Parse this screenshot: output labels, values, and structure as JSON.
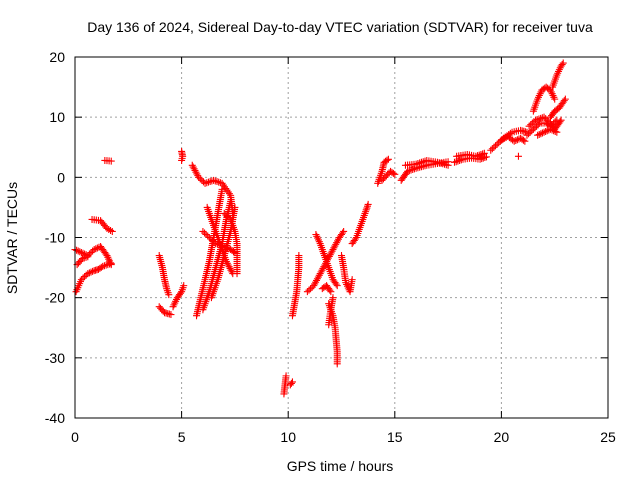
{
  "chart_data": {
    "type": "scatter",
    "title": "Day 136 of 2024, Sidereal Day-to-day VTEC variation (SDTVAR) for receiver tuva",
    "xlabel": "GPS time / hours",
    "ylabel": "SDTVAR / TECUs",
    "xlim": [
      0,
      25
    ],
    "ylim": [
      -40,
      20
    ],
    "xticks": [
      0,
      5,
      10,
      15,
      20,
      25
    ],
    "yticks": [
      -40,
      -30,
      -20,
      -10,
      0,
      10,
      20
    ],
    "xtick_labels": [
      "0",
      "5",
      "10",
      "15",
      "20",
      "25"
    ],
    "ytick_labels": [
      "-40",
      "-30",
      "-20",
      "-10",
      "0",
      "10",
      "20"
    ],
    "grid": true,
    "marker": "+",
    "color": "#ff0000",
    "segments": [
      {
        "name": "s1",
        "points": [
          [
            0.05,
            -19
          ],
          [
            0.3,
            -17
          ],
          [
            0.6,
            -16
          ],
          [
            0.9,
            -15.5
          ],
          [
            1.1,
            -15.3
          ],
          [
            1.3,
            -14.8
          ],
          [
            1.7,
            -14.3
          ]
        ]
      },
      {
        "name": "s2",
        "points": [
          [
            0.0,
            -12
          ],
          [
            0.3,
            -12.5
          ],
          [
            0.6,
            -13
          ],
          [
            0.9,
            -12
          ],
          [
            1.2,
            -11.5
          ],
          [
            1.5,
            -13
          ],
          [
            1.7,
            -14.5
          ]
        ]
      },
      {
        "name": "s3",
        "points": [
          [
            0.1,
            -14.5
          ],
          [
            0.35,
            -13.5
          ],
          [
            0.6,
            -13.2
          ]
        ]
      },
      {
        "name": "s4",
        "points": [
          [
            0.8,
            -7
          ],
          [
            1.2,
            -7.2
          ],
          [
            1.5,
            -8.5
          ],
          [
            1.75,
            -9
          ]
        ]
      },
      {
        "name": "s5",
        "points": [
          [
            1.4,
            2.8
          ],
          [
            1.7,
            2.7
          ]
        ]
      },
      {
        "name": "s6",
        "points": [
          [
            3.95,
            -13
          ],
          [
            4.1,
            -15
          ],
          [
            4.2,
            -17
          ],
          [
            4.3,
            -18.5
          ],
          [
            4.4,
            -19.5
          ]
        ]
      },
      {
        "name": "s7",
        "points": [
          [
            3.95,
            -21.5
          ],
          [
            4.2,
            -22.5
          ],
          [
            4.5,
            -22.8
          ]
        ]
      },
      {
        "name": "s8",
        "points": [
          [
            4.6,
            -21.5
          ],
          [
            4.8,
            -20
          ],
          [
            5.0,
            -19
          ],
          [
            5.1,
            -18
          ]
        ]
      },
      {
        "name": "s9",
        "points": [
          [
            5.0,
            4.3
          ],
          [
            5.05,
            3.5
          ],
          [
            5.0,
            2.8
          ]
        ]
      },
      {
        "name": "s10",
        "points": [
          [
            5.7,
            -23
          ],
          [
            5.9,
            -20
          ],
          [
            6.1,
            -17
          ],
          [
            6.3,
            -14
          ],
          [
            6.5,
            -10
          ],
          [
            6.7,
            -6
          ],
          [
            6.9,
            -2
          ]
        ]
      },
      {
        "name": "s11",
        "points": [
          [
            6.0,
            -22
          ],
          [
            6.3,
            -19
          ],
          [
            6.6,
            -15
          ],
          [
            6.9,
            -11
          ],
          [
            7.1,
            -7
          ],
          [
            7.3,
            -4
          ]
        ]
      },
      {
        "name": "s12",
        "points": [
          [
            6.4,
            -20
          ],
          [
            6.7,
            -17
          ],
          [
            7.0,
            -13
          ],
          [
            7.3,
            -9
          ],
          [
            7.5,
            -5
          ]
        ]
      },
      {
        "name": "s13",
        "points": [
          [
            5.5,
            2
          ],
          [
            5.8,
            0
          ],
          [
            6.1,
            -1
          ],
          [
            6.5,
            -0.5
          ],
          [
            6.9,
            -1
          ],
          [
            7.3,
            -3
          ],
          [
            7.4,
            -6
          ]
        ]
      },
      {
        "name": "s14",
        "points": [
          [
            6.0,
            -9
          ],
          [
            6.3,
            -10
          ],
          [
            6.6,
            -11
          ],
          [
            7.0,
            -11.5
          ],
          [
            7.3,
            -12
          ],
          [
            7.5,
            -12.5
          ]
        ]
      },
      {
        "name": "s15",
        "points": [
          [
            6.2,
            -5
          ],
          [
            6.5,
            -8
          ],
          [
            6.8,
            -11
          ],
          [
            7.1,
            -14
          ],
          [
            7.4,
            -16
          ]
        ]
      },
      {
        "name": "s16",
        "points": [
          [
            7.0,
            -6
          ],
          [
            7.3,
            -7
          ],
          [
            7.5,
            -9
          ],
          [
            7.6,
            -11
          ],
          [
            7.6,
            -13
          ],
          [
            7.6,
            -15
          ],
          [
            7.6,
            -16
          ]
        ]
      },
      {
        "name": "s17",
        "points": [
          [
            9.8,
            -36
          ],
          [
            9.9,
            -33
          ]
        ]
      },
      {
        "name": "s18",
        "points": [
          [
            10.1,
            -34.5
          ],
          [
            10.2,
            -34
          ]
        ]
      },
      {
        "name": "s19",
        "points": [
          [
            10.2,
            -23
          ],
          [
            10.3,
            -21
          ],
          [
            10.4,
            -19
          ],
          [
            10.45,
            -17
          ],
          [
            10.5,
            -15
          ],
          [
            10.5,
            -13
          ]
        ]
      },
      {
        "name": "s20",
        "points": [
          [
            10.9,
            -19
          ],
          [
            11.2,
            -18
          ],
          [
            11.5,
            -16
          ],
          [
            11.8,
            -14
          ],
          [
            12.1,
            -12
          ],
          [
            12.4,
            -10
          ],
          [
            12.6,
            -9
          ]
        ]
      },
      {
        "name": "s21",
        "points": [
          [
            11.3,
            -9.5
          ],
          [
            11.5,
            -11
          ],
          [
            11.7,
            -13
          ],
          [
            11.9,
            -15
          ],
          [
            12.1,
            -17
          ],
          [
            12.3,
            -18
          ]
        ]
      },
      {
        "name": "s22",
        "points": [
          [
            11.6,
            -18.5
          ],
          [
            11.8,
            -18
          ],
          [
            12.0,
            -19
          ]
        ]
      },
      {
        "name": "s23",
        "points": [
          [
            11.9,
            -21
          ],
          [
            12.1,
            -23
          ],
          [
            12.2,
            -25
          ],
          [
            12.25,
            -27
          ],
          [
            12.3,
            -29
          ],
          [
            12.3,
            -31
          ]
        ]
      },
      {
        "name": "s24",
        "points": [
          [
            12.1,
            -20
          ],
          [
            12.0,
            -22
          ],
          [
            11.9,
            -24.5
          ]
        ]
      },
      {
        "name": "s25",
        "points": [
          [
            12.5,
            -13
          ],
          [
            12.6,
            -15
          ],
          [
            12.7,
            -17.5
          ],
          [
            12.9,
            -19
          ],
          [
            13.0,
            -17
          ]
        ]
      },
      {
        "name": "s26",
        "points": [
          [
            13.0,
            -11
          ],
          [
            13.2,
            -10
          ],
          [
            13.4,
            -8
          ],
          [
            13.6,
            -6
          ],
          [
            13.75,
            -4.5
          ]
        ]
      },
      {
        "name": "s27",
        "points": [
          [
            14.2,
            -1
          ],
          [
            14.3,
            0
          ],
          [
            14.4,
            1
          ],
          [
            14.5,
            2.5
          ],
          [
            14.7,
            3
          ]
        ]
      },
      {
        "name": "s28",
        "points": [
          [
            14.4,
            -0.5
          ],
          [
            14.8,
            1
          ],
          [
            15.0,
            0.5
          ]
        ]
      },
      {
        "name": "s29",
        "points": [
          [
            15.3,
            -0.5
          ],
          [
            15.6,
            1
          ],
          [
            16.0,
            1.5
          ],
          [
            16.5,
            2
          ],
          [
            17.0,
            2.3
          ],
          [
            17.5,
            2.6
          ]
        ]
      },
      {
        "name": "s30",
        "points": [
          [
            15.5,
            2
          ],
          [
            16.0,
            2.2
          ],
          [
            16.5,
            2.8
          ],
          [
            17.0,
            2.5
          ],
          [
            17.5,
            2
          ]
        ]
      },
      {
        "name": "s31",
        "points": [
          [
            17.8,
            2.5
          ],
          [
            18.2,
            3
          ],
          [
            18.6,
            3.2
          ],
          [
            19.0,
            3
          ],
          [
            19.3,
            3.4
          ]
        ]
      },
      {
        "name": "s32",
        "points": [
          [
            17.9,
            3.5
          ],
          [
            18.4,
            3.8
          ],
          [
            18.8,
            3.5
          ],
          [
            19.2,
            4
          ]
        ]
      },
      {
        "name": "s33",
        "points": [
          [
            19.5,
            4.5
          ],
          [
            19.8,
            5.5
          ],
          [
            20.1,
            6.5
          ],
          [
            20.5,
            7.5
          ],
          [
            20.9,
            7.8
          ],
          [
            21.2,
            7.5
          ]
        ]
      },
      {
        "name": "s34",
        "points": [
          [
            20.0,
            6.2
          ],
          [
            20.3,
            6.8
          ],
          [
            20.6,
            6
          ],
          [
            20.9,
            6.5
          ],
          [
            21.1,
            6
          ]
        ]
      },
      {
        "name": "s35",
        "points": [
          [
            20.8,
            3.5
          ]
        ]
      },
      {
        "name": "s36",
        "points": [
          [
            21.2,
            7
          ],
          [
            21.5,
            8
          ],
          [
            21.8,
            9
          ],
          [
            22.1,
            9
          ],
          [
            22.3,
            8.5
          ],
          [
            22.6,
            9.5
          ]
        ]
      },
      {
        "name": "s37",
        "points": [
          [
            21.3,
            8.5
          ],
          [
            21.6,
            9.5
          ],
          [
            22.0,
            10
          ],
          [
            22.3,
            9
          ],
          [
            22.5,
            8
          ],
          [
            22.8,
            9.5
          ]
        ]
      },
      {
        "name": "s38",
        "points": [
          [
            21.5,
            11
          ],
          [
            21.7,
            13
          ],
          [
            21.9,
            14.5
          ],
          [
            22.1,
            15
          ],
          [
            22.3,
            14.5
          ],
          [
            22.5,
            13
          ]
        ]
      },
      {
        "name": "s39",
        "points": [
          [
            22.3,
            10
          ],
          [
            22.5,
            11
          ],
          [
            22.7,
            11.5
          ],
          [
            22.9,
            12.5
          ],
          [
            23.0,
            13
          ]
        ]
      },
      {
        "name": "s40",
        "points": [
          [
            22.4,
            15
          ],
          [
            22.6,
            17
          ],
          [
            22.8,
            18.5
          ],
          [
            22.9,
            19
          ]
        ]
      },
      {
        "name": "s41",
        "points": [
          [
            21.7,
            7
          ],
          [
            22.0,
            7.5
          ],
          [
            22.3,
            8
          ],
          [
            22.6,
            7.5
          ]
        ]
      }
    ]
  }
}
